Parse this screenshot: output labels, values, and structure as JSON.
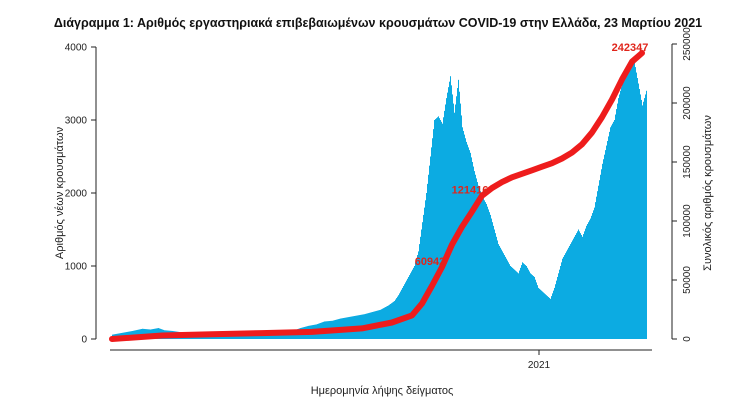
{
  "chart_data": {
    "type": "bar",
    "title": "Διάγραμμα 1: Αριθμός εργαστηριακά επιβεβαιωμένων κρουσμάτων COVID-19 στην Ελλάδα, 23 Μαρτίου 2021",
    "xlabel": "Ημερομηνία λήψης δείγματος",
    "ylabel": "Αριθμός νέων κρουσμάτων",
    "y2label": "Συνολικός αριθμός κρουσμάτων",
    "ylim": [
      0,
      4000
    ],
    "y2lim": [
      0,
      250000
    ],
    "yticks": [
      "0",
      "1000",
      "2000",
      "3000",
      "4000"
    ],
    "y2ticks": [
      "0",
      "50000",
      "100000",
      "150000",
      "200000",
      "250000"
    ],
    "xticks": [
      "2021"
    ],
    "colors": {
      "bars": "#00a7e1",
      "cumulative": "#ee1c1c",
      "annotation": "#e0251b"
    },
    "series": [
      {
        "name": "",
        "kind": "bar",
        "points": [
          [
            0,
            60
          ],
          [
            16,
            100
          ],
          [
            20,
            110
          ],
          [
            30,
            140
          ],
          [
            38,
            130
          ],
          [
            46,
            150
          ],
          [
            52,
            120
          ],
          [
            60,
            110
          ],
          [
            70,
            90
          ],
          [
            80,
            80
          ],
          [
            90,
            70
          ],
          [
            100,
            60
          ],
          [
            110,
            60
          ],
          [
            120,
            60
          ],
          [
            130,
            60
          ],
          [
            140,
            70
          ],
          [
            150,
            80
          ],
          [
            160,
            90
          ],
          [
            170,
            100
          ],
          [
            180,
            110
          ],
          [
            188,
            150
          ],
          [
            196,
            180
          ],
          [
            204,
            200
          ],
          [
            212,
            240
          ],
          [
            220,
            250
          ],
          [
            228,
            280
          ],
          [
            236,
            300
          ],
          [
            244,
            320
          ],
          [
            252,
            340
          ],
          [
            260,
            370
          ],
          [
            268,
            400
          ],
          [
            276,
            460
          ],
          [
            282,
            520
          ],
          [
            286,
            600
          ],
          [
            290,
            700
          ],
          [
            294,
            800
          ],
          [
            298,
            900
          ],
          [
            302,
            1000
          ],
          [
            306,
            1200
          ],
          [
            310,
            1600
          ],
          [
            314,
            2000
          ],
          [
            318,
            2500
          ],
          [
            322,
            3000
          ],
          [
            326,
            3050
          ],
          [
            330,
            2950
          ],
          [
            334,
            3300
          ],
          [
            338,
            3600
          ],
          [
            342,
            3100
          ],
          [
            346,
            3550
          ],
          [
            350,
            2900
          ],
          [
            354,
            2700
          ],
          [
            358,
            2550
          ],
          [
            362,
            2300
          ],
          [
            366,
            2100
          ],
          [
            370,
            1950
          ],
          [
            374,
            1850
          ],
          [
            378,
            1700
          ],
          [
            382,
            1500
          ],
          [
            386,
            1300
          ],
          [
            390,
            1200
          ],
          [
            394,
            1100
          ],
          [
            398,
            1000
          ],
          [
            402,
            950
          ],
          [
            406,
            900
          ],
          [
            410,
            1050
          ],
          [
            414,
            1000
          ],
          [
            418,
            900
          ],
          [
            422,
            850
          ],
          [
            426,
            700
          ],
          [
            430,
            650
          ],
          [
            434,
            600
          ],
          [
            438,
            550
          ],
          [
            442,
            700
          ],
          [
            446,
            900
          ],
          [
            450,
            1100
          ],
          [
            454,
            1200
          ],
          [
            458,
            1300
          ],
          [
            462,
            1400
          ],
          [
            466,
            1500
          ],
          [
            470,
            1400
          ],
          [
            474,
            1550
          ],
          [
            478,
            1650
          ],
          [
            482,
            1800
          ],
          [
            486,
            2100
          ],
          [
            490,
            2400
          ],
          [
            494,
            2650
          ],
          [
            498,
            2900
          ],
          [
            502,
            3000
          ],
          [
            506,
            3300
          ],
          [
            510,
            3500
          ],
          [
            514,
            3600
          ],
          [
            518,
            3700
          ],
          [
            522,
            3800
          ],
          [
            526,
            3500
          ],
          [
            530,
            3200
          ],
          [
            534,
            3400
          ]
        ]
      },
      {
        "name": "",
        "kind": "line",
        "points": [
          [
            0,
            0
          ],
          [
            50,
            3000
          ],
          [
            100,
            4000
          ],
          [
            150,
            5000
          ],
          [
            200,
            6000
          ],
          [
            250,
            9000
          ],
          [
            280,
            14000
          ],
          [
            300,
            20000
          ],
          [
            310,
            30000
          ],
          [
            320,
            45000
          ],
          [
            330,
            60942
          ],
          [
            340,
            80000
          ],
          [
            350,
            95000
          ],
          [
            360,
            108000
          ],
          [
            370,
            121416
          ],
          [
            380,
            128000
          ],
          [
            390,
            133000
          ],
          [
            400,
            137000
          ],
          [
            410,
            140000
          ],
          [
            420,
            143000
          ],
          [
            430,
            146000
          ],
          [
            440,
            149000
          ],
          [
            450,
            153000
          ],
          [
            460,
            158000
          ],
          [
            470,
            165000
          ],
          [
            480,
            175000
          ],
          [
            490,
            188000
          ],
          [
            500,
            203000
          ],
          [
            510,
            220000
          ],
          [
            520,
            235000
          ],
          [
            530,
            242347
          ]
        ]
      }
    ],
    "annotations": [
      {
        "x": 330,
        "y2": 60942,
        "text": "60942"
      },
      {
        "x": 370,
        "y2": 121416,
        "text": "121416"
      },
      {
        "x": 530,
        "y2": 242347,
        "text": "242347"
      }
    ]
  }
}
